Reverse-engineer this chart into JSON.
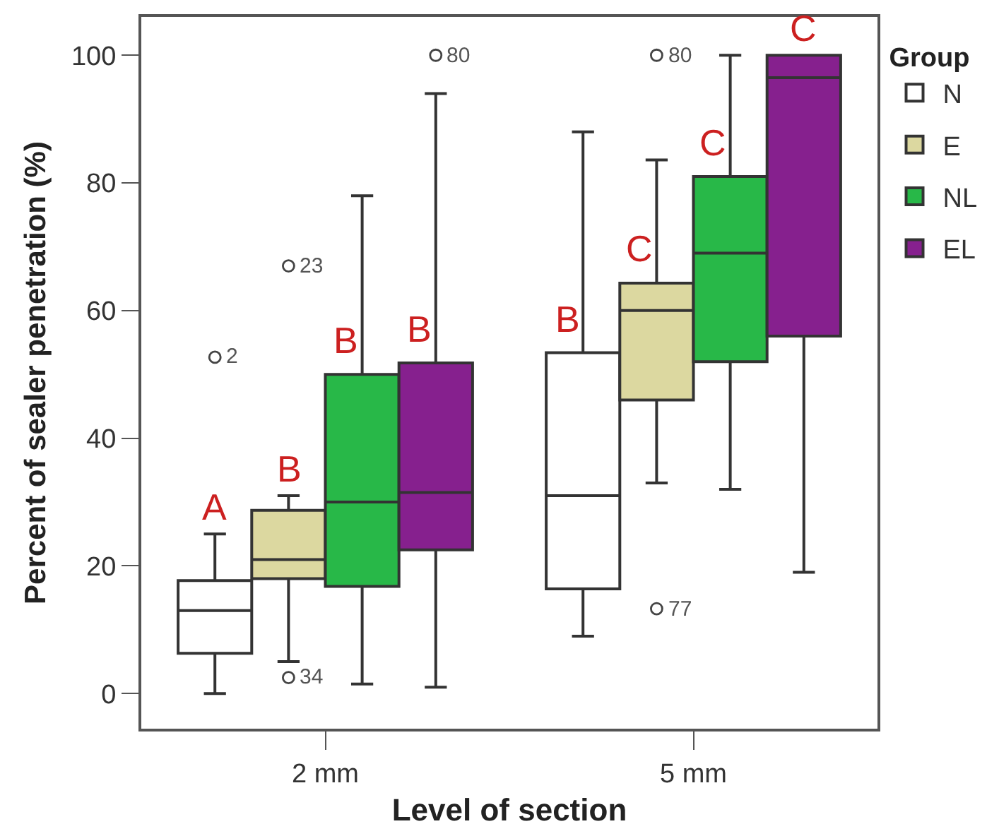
{
  "chart_data": {
    "type": "box",
    "xlabel": "Level of section",
    "ylabel": "Percent of sealer penetration (%)",
    "legend_title": "Group",
    "categories": [
      "2 mm",
      "5 mm"
    ],
    "series": [
      {
        "name": "N",
        "color": "#ffffff",
        "boxes": [
          {
            "low": 0,
            "q1": 6.3,
            "median": 13,
            "q3": 17.7,
            "high": 25,
            "outliers": [
              52.7
            ]
          },
          {
            "low": 9,
            "q1": 16.4,
            "median": 31,
            "q3": 53.4,
            "high": 88
          }
        ]
      },
      {
        "name": "E",
        "color": "#dcd8a0",
        "boxes": [
          {
            "low": 5,
            "q1": 18,
            "median": 21,
            "q3": 28.7,
            "high": 31,
            "outliers": [
              67,
              2.5
            ]
          },
          {
            "low": 33,
            "q1": 46,
            "median": 60,
            "q3": 64.3,
            "high": 83.6,
            "outliers": [
              13.3,
              100
            ]
          }
        ]
      },
      {
        "name": "NL",
        "color": "#28b848",
        "boxes": [
          {
            "low": 1.5,
            "q1": 16.8,
            "median": 30,
            "q3": 50,
            "high": 78
          },
          {
            "low": 32,
            "q1": 52,
            "median": 69,
            "q3": 81,
            "high": 100
          }
        ]
      },
      {
        "name": "EL",
        "color": "#86208e",
        "boxes": [
          {
            "low": 1,
            "q1": 22.5,
            "median": 31.5,
            "q3": 51.8,
            "high": 94,
            "outliers": [
              100
            ]
          },
          {
            "low": 19,
            "q1": 56,
            "median": 96.5,
            "q3": 100,
            "high": 100
          }
        ]
      }
    ],
    "ylim": [
      -5.5,
      106
    ],
    "yticks": [
      0,
      20,
      40,
      60,
      80,
      100
    ],
    "marker": "circle",
    "legend": "top right",
    "annotations": [
      "A",
      "B",
      "B",
      "B",
      "B",
      "C",
      "C",
      "C",
      "2",
      "23",
      "34",
      "77",
      "80",
      "80"
    ]
  }
}
